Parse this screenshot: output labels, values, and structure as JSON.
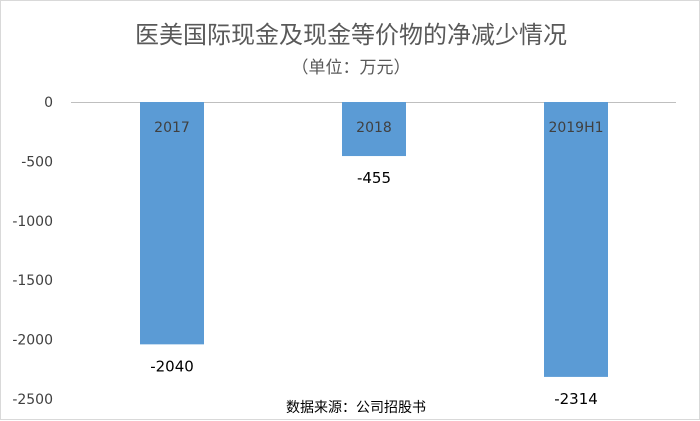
{
  "chart_data": {
    "type": "bar",
    "title": "医美国际现金及现金等价物的净减少情况",
    "subtitle": "（单位：万元）",
    "categories": [
      "2017",
      "2018",
      "2019H1"
    ],
    "values": [
      -2040,
      -455,
      -2314
    ],
    "data_labels": [
      "-2040",
      "-455",
      "-2314"
    ],
    "ylim": [
      -2500,
      0
    ],
    "yticks": [
      0,
      -500,
      -1000,
      -1500,
      -2000,
      -2500
    ],
    "grid": false,
    "bar_color": "#5b9bd5",
    "source": "数据来源：公司招股书"
  }
}
